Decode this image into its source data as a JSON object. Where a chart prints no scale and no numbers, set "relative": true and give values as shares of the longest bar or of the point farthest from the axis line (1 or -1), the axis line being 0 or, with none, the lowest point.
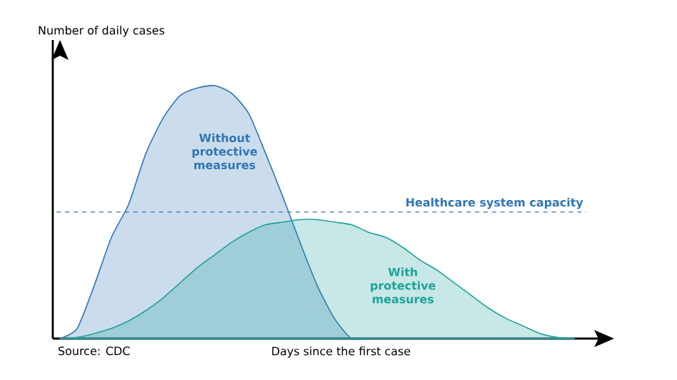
{
  "chart_data": {
    "type": "area",
    "relative": true,
    "ylabel": "Number of daily cases",
    "xlabel": "Days since the first case",
    "annotations": [
      "Source: CDC"
    ],
    "categories": [
      null,
      null,
      null,
      null,
      null,
      null,
      null,
      null,
      null,
      null,
      null,
      null,
      null,
      null,
      null,
      null,
      null,
      null,
      null,
      null,
      null,
      null,
      null,
      null,
      null,
      null,
      null,
      null,
      null,
      null,
      null
    ],
    "series": [
      {
        "name": "Without protective measures",
        "color": "#2f75b8",
        "values": [
          0,
          0.04,
          0.21,
          0.4,
          0.53,
          0.73,
          0.87,
          0.96,
          0.99,
          1.0,
          0.97,
          0.89,
          0.73,
          0.56,
          0.38,
          0.21,
          0.08,
          0,
          0,
          0,
          0,
          0,
          0,
          0,
          0,
          0,
          0,
          0,
          0,
          0,
          0
        ]
      },
      {
        "name": "With protective measures",
        "color": "#1ea39a",
        "values": [
          0,
          0.005,
          0.02,
          0.04,
          0.07,
          0.11,
          0.16,
          0.22,
          0.28,
          0.33,
          0.38,
          0.42,
          0.45,
          0.46,
          0.47,
          0.47,
          0.46,
          0.45,
          0.42,
          0.4,
          0.36,
          0.31,
          0.27,
          0.22,
          0.17,
          0.12,
          0.08,
          0.05,
          0.02,
          0.005,
          0
        ]
      }
    ],
    "ref_lines": [
      {
        "axis": "y",
        "value": 0.5,
        "label": "Healthcare system capacity",
        "color": "#2f75b8",
        "line_style": "dashed"
      }
    ]
  }
}
